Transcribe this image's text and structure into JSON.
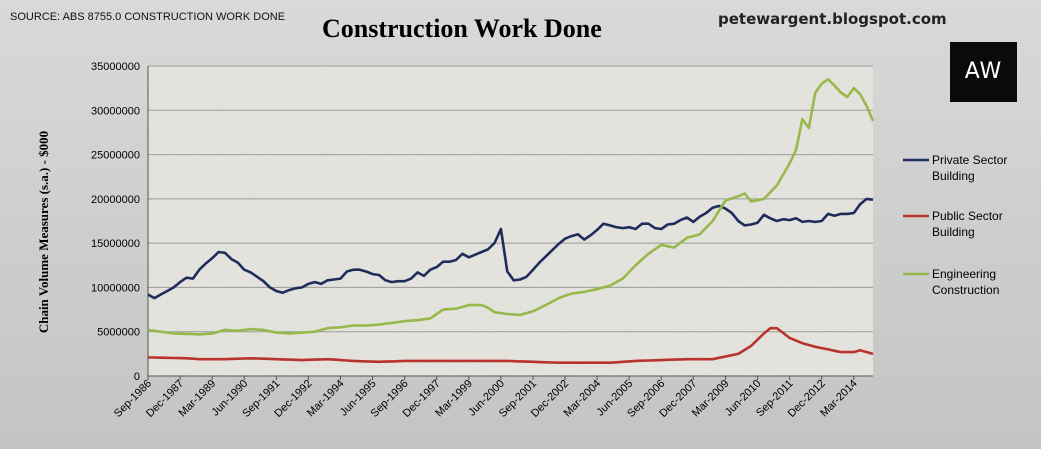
{
  "source_note": "SOURCE: ABS 8755.0 CONSTRUCTION WORK DONE",
  "blog": "petewargent.blogspot.com",
  "logo_text": "AW",
  "chart_data": {
    "type": "line",
    "title": "Construction Work Done",
    "xlabel": "",
    "ylabel": "Chain Volume Measures (s.a.) - $000",
    "ylim": [
      0,
      35000000
    ],
    "yticks": [
      0,
      5000000,
      10000000,
      15000000,
      20000000,
      25000000,
      30000000,
      35000000
    ],
    "ytick_labels": [
      "0",
      "5000000",
      "10000000",
      "15000000",
      "20000000",
      "25000000",
      "30000000",
      "35000000"
    ],
    "x_tick_labels": [
      "Sep-1986",
      "Dec-1987",
      "Mar-1989",
      "Jun-1990",
      "Sep-1991",
      "Dec-1992",
      "Mar-1994",
      "Jun-1995",
      "Sep-1996",
      "Dec-1997",
      "Mar-1999",
      "Jun-2000",
      "Sep-2001",
      "Dec-2002",
      "Mar-2004",
      "Jun-2005",
      "Sep-2006",
      "Dec-2007",
      "Mar-2009",
      "Jun-2010",
      "Sep-2011",
      "Dec-2012",
      "Mar-2014"
    ],
    "quarters": 114,
    "legend_position": "right",
    "grid": true,
    "series": [
      {
        "name": "Private Sector Building",
        "color": "#1f2d5c",
        "anchors": [
          [
            0,
            9200000
          ],
          [
            1,
            8800000
          ],
          [
            2,
            9200000
          ],
          [
            3,
            9600000
          ],
          [
            4,
            10000000
          ],
          [
            5,
            10600000
          ],
          [
            6,
            11100000
          ],
          [
            7,
            11000000
          ],
          [
            8,
            12000000
          ],
          [
            9,
            12700000
          ],
          [
            10,
            13300000
          ],
          [
            11,
            14000000
          ],
          [
            12,
            13900000
          ],
          [
            13,
            13200000
          ],
          [
            14,
            12800000
          ],
          [
            15,
            12000000
          ],
          [
            16,
            11700000
          ],
          [
            17,
            11200000
          ],
          [
            18,
            10700000
          ],
          [
            19,
            10000000
          ],
          [
            20,
            9600000
          ],
          [
            21,
            9400000
          ],
          [
            22,
            9700000
          ],
          [
            23,
            9900000
          ],
          [
            24,
            10000000
          ],
          [
            25,
            10400000
          ],
          [
            26,
            10600000
          ],
          [
            27,
            10400000
          ],
          [
            28,
            10800000
          ],
          [
            29,
            10900000
          ],
          [
            30,
            11000000
          ],
          [
            31,
            11800000
          ],
          [
            32,
            12000000
          ],
          [
            33,
            12000000
          ],
          [
            34,
            11800000
          ],
          [
            35,
            11500000
          ],
          [
            36,
            11400000
          ],
          [
            37,
            10800000
          ],
          [
            38,
            10600000
          ],
          [
            39,
            10700000
          ],
          [
            40,
            10700000
          ],
          [
            41,
            11000000
          ],
          [
            42,
            11700000
          ],
          [
            43,
            11300000
          ],
          [
            44,
            12000000
          ],
          [
            45,
            12300000
          ],
          [
            46,
            12900000
          ],
          [
            47,
            12900000
          ],
          [
            48,
            13100000
          ],
          [
            49,
            13800000
          ],
          [
            50,
            13400000
          ],
          [
            51,
            13700000
          ],
          [
            52,
            14000000
          ],
          [
            53,
            14300000
          ],
          [
            54,
            15000000
          ],
          [
            55,
            16600000
          ],
          [
            56,
            11800000
          ],
          [
            57,
            10800000
          ],
          [
            58,
            10900000
          ],
          [
            59,
            11200000
          ],
          [
            60,
            12000000
          ],
          [
            61,
            12800000
          ],
          [
            62,
            13500000
          ],
          [
            63,
            14200000
          ],
          [
            64,
            14900000
          ],
          [
            65,
            15500000
          ],
          [
            66,
            15800000
          ],
          [
            67,
            16000000
          ],
          [
            68,
            15400000
          ],
          [
            69,
            15900000
          ],
          [
            70,
            16500000
          ],
          [
            71,
            17200000
          ],
          [
            72,
            17000000
          ],
          [
            73,
            16800000
          ],
          [
            74,
            16700000
          ],
          [
            75,
            16800000
          ],
          [
            76,
            16600000
          ],
          [
            77,
            17200000
          ],
          [
            78,
            17200000
          ],
          [
            79,
            16700000
          ],
          [
            80,
            16600000
          ],
          [
            81,
            17100000
          ],
          [
            82,
            17200000
          ],
          [
            83,
            17600000
          ],
          [
            84,
            17900000
          ],
          [
            85,
            17400000
          ],
          [
            86,
            18000000
          ],
          [
            87,
            18400000
          ],
          [
            88,
            19000000
          ],
          [
            89,
            19200000
          ],
          [
            90,
            18900000
          ],
          [
            91,
            18400000
          ],
          [
            92,
            17500000
          ],
          [
            93,
            17000000
          ],
          [
            94,
            17100000
          ],
          [
            95,
            17300000
          ],
          [
            96,
            18200000
          ],
          [
            97,
            17800000
          ],
          [
            98,
            17500000
          ],
          [
            99,
            17700000
          ],
          [
            100,
            17600000
          ],
          [
            101,
            17800000
          ],
          [
            102,
            17400000
          ],
          [
            103,
            17500000
          ],
          [
            104,
            17400000
          ],
          [
            105,
            17500000
          ],
          [
            106,
            18300000
          ],
          [
            107,
            18100000
          ],
          [
            108,
            18300000
          ],
          [
            109,
            18300000
          ],
          [
            110,
            18400000
          ],
          [
            111,
            19400000
          ],
          [
            112,
            20000000
          ],
          [
            113,
            19900000
          ]
        ]
      },
      {
        "name": "Public Sector Building",
        "color": "#b8332e",
        "anchors": [
          [
            0,
            2100000
          ],
          [
            6,
            2000000
          ],
          [
            8,
            1900000
          ],
          [
            12,
            1900000
          ],
          [
            16,
            2000000
          ],
          [
            20,
            1900000
          ],
          [
            24,
            1800000
          ],
          [
            28,
            1900000
          ],
          [
            32,
            1700000
          ],
          [
            36,
            1600000
          ],
          [
            40,
            1700000
          ],
          [
            44,
            1700000
          ],
          [
            48,
            1700000
          ],
          [
            52,
            1700000
          ],
          [
            56,
            1700000
          ],
          [
            60,
            1600000
          ],
          [
            64,
            1500000
          ],
          [
            68,
            1500000
          ],
          [
            72,
            1500000
          ],
          [
            76,
            1700000
          ],
          [
            80,
            1800000
          ],
          [
            84,
            1900000
          ],
          [
            88,
            1900000
          ],
          [
            92,
            2500000
          ],
          [
            94,
            3400000
          ],
          [
            96,
            4800000
          ],
          [
            97,
            5400000
          ],
          [
            98,
            5400000
          ],
          [
            100,
            4300000
          ],
          [
            102,
            3700000
          ],
          [
            104,
            3300000
          ],
          [
            106,
            3000000
          ],
          [
            108,
            2700000
          ],
          [
            110,
            2700000
          ],
          [
            111,
            2900000
          ],
          [
            113,
            2500000
          ]
        ]
      },
      {
        "name": "Engineering Construction",
        "color": "#97b84b",
        "anchors": [
          [
            0,
            5200000
          ],
          [
            2,
            5000000
          ],
          [
            4,
            4800000
          ],
          [
            8,
            4700000
          ],
          [
            10,
            4800000
          ],
          [
            12,
            5200000
          ],
          [
            14,
            5100000
          ],
          [
            16,
            5300000
          ],
          [
            18,
            5200000
          ],
          [
            20,
            4900000
          ],
          [
            22,
            4800000
          ],
          [
            24,
            4900000
          ],
          [
            26,
            5000000
          ],
          [
            28,
            5400000
          ],
          [
            30,
            5500000
          ],
          [
            32,
            5700000
          ],
          [
            34,
            5700000
          ],
          [
            36,
            5800000
          ],
          [
            38,
            6000000
          ],
          [
            40,
            6200000
          ],
          [
            42,
            6300000
          ],
          [
            44,
            6500000
          ],
          [
            46,
            7500000
          ],
          [
            48,
            7600000
          ],
          [
            50,
            8000000
          ],
          [
            52,
            8000000
          ],
          [
            53,
            7700000
          ],
          [
            54,
            7200000
          ],
          [
            56,
            7000000
          ],
          [
            58,
            6900000
          ],
          [
            60,
            7300000
          ],
          [
            62,
            8000000
          ],
          [
            64,
            8800000
          ],
          [
            66,
            9300000
          ],
          [
            68,
            9500000
          ],
          [
            70,
            9800000
          ],
          [
            72,
            10200000
          ],
          [
            74,
            11000000
          ],
          [
            76,
            12500000
          ],
          [
            78,
            13800000
          ],
          [
            80,
            14800000
          ],
          [
            82,
            14500000
          ],
          [
            84,
            15600000
          ],
          [
            86,
            16000000
          ],
          [
            88,
            17500000
          ],
          [
            90,
            19800000
          ],
          [
            92,
            20300000
          ],
          [
            93,
            20600000
          ],
          [
            94,
            19700000
          ],
          [
            96,
            20000000
          ],
          [
            98,
            21500000
          ],
          [
            100,
            24000000
          ],
          [
            101,
            25500000
          ],
          [
            102,
            29000000
          ],
          [
            103,
            28000000
          ],
          [
            104,
            32000000
          ],
          [
            105,
            33000000
          ],
          [
            106,
            33500000
          ],
          [
            107,
            32800000
          ],
          [
            108,
            32000000
          ],
          [
            109,
            31500000
          ],
          [
            110,
            32500000
          ],
          [
            111,
            31800000
          ],
          [
            112,
            30500000
          ],
          [
            113,
            28800000
          ]
        ]
      }
    ]
  }
}
